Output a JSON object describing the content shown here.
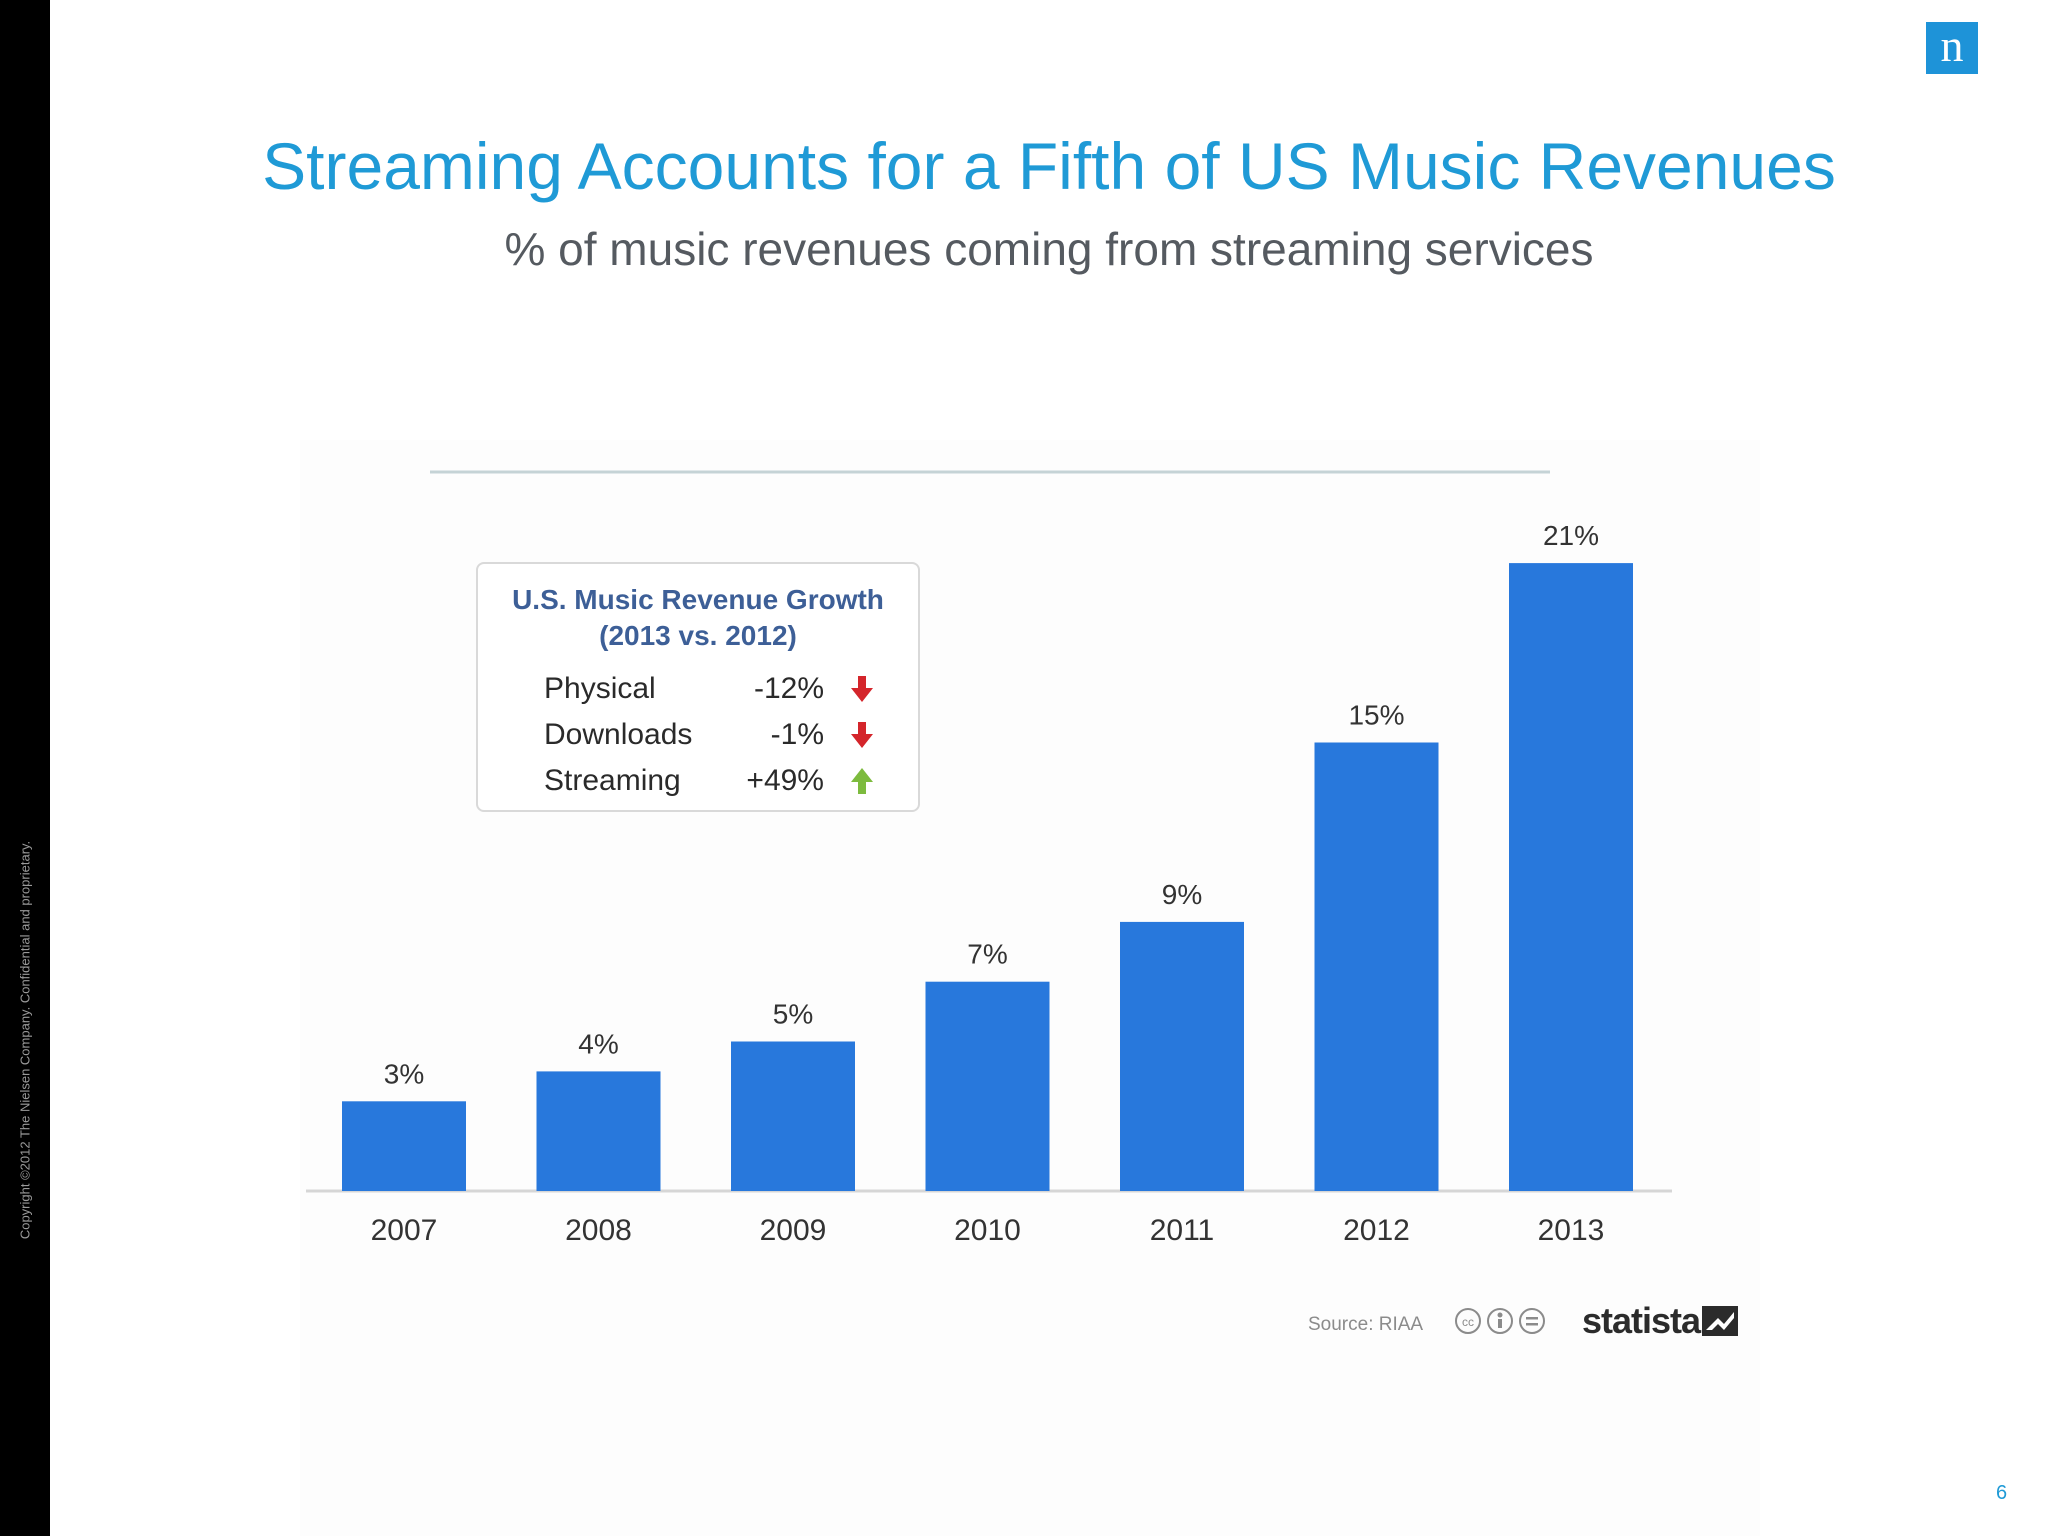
{
  "slide": {
    "title": "Streaming Accounts for a Fifth of US Music Revenues",
    "subtitle": "% of music revenues coming from streaming services",
    "copyright": "Copyright ©2012 The Nielsen Company. Confidential and proprietary.",
    "logo_letter": "n",
    "page_number": "6",
    "accent_color": "#1f9ad6"
  },
  "growth_box": {
    "title_line1": "U.S. Music Revenue Growth",
    "title_line2": "(2013 vs. 2012)",
    "rows": [
      {
        "label": "Physical",
        "value": "-12%",
        "direction": "down",
        "color": "#d4252b"
      },
      {
        "label": "Downloads",
        "value": "-1%",
        "direction": "down",
        "color": "#d4252b"
      },
      {
        "label": "Streaming",
        "value": "+49%",
        "direction": "up",
        "color": "#7dbb3e"
      }
    ]
  },
  "source": {
    "text": "Source: RIAA",
    "brand": "statista"
  },
  "chart_data": {
    "type": "bar",
    "categories": [
      "2007",
      "2008",
      "2009",
      "2010",
      "2011",
      "2012",
      "2013"
    ],
    "values": [
      3,
      4,
      5,
      7,
      9,
      15,
      21
    ],
    "value_labels": [
      "3%",
      "4%",
      "5%",
      "7%",
      "9%",
      "15%",
      "21%"
    ],
    "bar_color": "#2878dc",
    "ylim": [
      0,
      21
    ],
    "grid": false
  }
}
